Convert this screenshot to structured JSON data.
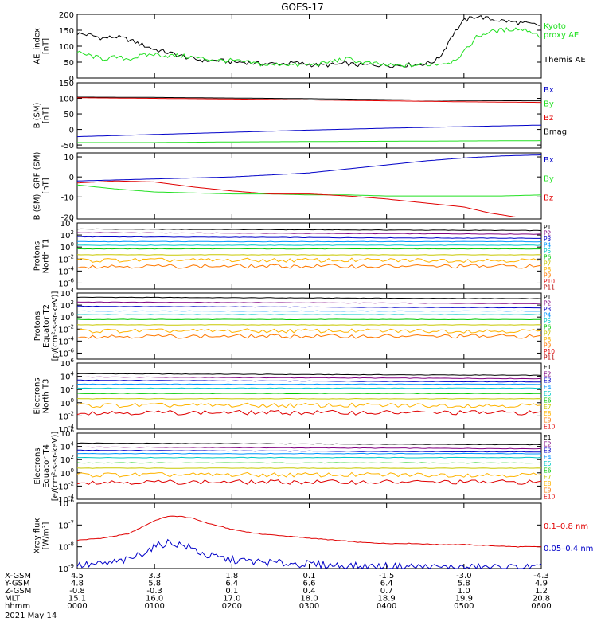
{
  "title": "GOES-17",
  "colors": {
    "black": "#000000",
    "red": "#e00000",
    "green": "#22e022",
    "blue": "#0000c8"
  },
  "chart_data": [
    {
      "type": "line",
      "ylabel": [
        "AE_index",
        "[nT]"
      ],
      "ylim": [
        0,
        200
      ],
      "ticks": [
        "0",
        "50",
        "100",
        "150",
        "200"
      ],
      "legend": [
        {
          "text": "Kyoto",
          "color": "#22e022"
        },
        {
          "text": "proxy AE",
          "color": "#22e022"
        },
        {
          "text": "Themis AE",
          "color": "#000000"
        }
      ],
      "series": [
        {
          "color": "#000000",
          "x": [
            0,
            10,
            20,
            30,
            40,
            50,
            60,
            70,
            80,
            90,
            100,
            110,
            120,
            130,
            140,
            150,
            160,
            170,
            180,
            190,
            200,
            210,
            220,
            230,
            240,
            250,
            260,
            270,
            275,
            280,
            285,
            290,
            300,
            310,
            320,
            330,
            340,
            350,
            360
          ],
          "values": [
            140,
            135,
            125,
            130,
            120,
            105,
            90,
            80,
            70,
            60,
            55,
            55,
            50,
            50,
            45,
            45,
            45,
            48,
            42,
            40,
            42,
            45,
            40,
            42,
            40,
            40,
            42,
            45,
            50,
            60,
            90,
            130,
            180,
            195,
            185,
            180,
            175,
            170,
            165
          ]
        },
        {
          "color": "#22e022",
          "x": [
            0,
            10,
            20,
            30,
            40,
            50,
            60,
            70,
            80,
            90,
            100,
            110,
            120,
            130,
            140,
            150,
            160,
            170,
            180,
            190,
            200,
            210,
            220,
            230,
            240,
            250,
            260,
            270,
            280,
            290,
            300,
            310,
            320,
            330,
            340,
            350,
            360
          ],
          "values": [
            80,
            70,
            60,
            65,
            60,
            70,
            75,
            70,
            70,
            65,
            60,
            55,
            55,
            50,
            45,
            40,
            45,
            40,
            42,
            45,
            55,
            60,
            50,
            45,
            40,
            38,
            40,
            42,
            45,
            50,
            80,
            130,
            145,
            150,
            155,
            150,
            130
          ]
        }
      ]
    },
    {
      "type": "line",
      "ylabel": [
        "B (SM)",
        "[nT]"
      ],
      "ylim": [
        -60,
        150
      ],
      "ticks": [
        "-50",
        "0",
        "50",
        "100",
        "150"
      ],
      "legend": [
        {
          "text": "Bx",
          "color": "#0000c8"
        },
        {
          "text": "By",
          "color": "#22e022"
        },
        {
          "text": "Bz",
          "color": "#e00000"
        },
        {
          "text": "Bmag",
          "color": "#000000"
        }
      ],
      "series": [
        {
          "color": "#000000",
          "x": [
            0,
            60,
            120,
            180,
            240,
            300,
            360
          ],
          "values": [
            104,
            103,
            101,
            99,
            96,
            93,
            92
          ]
        },
        {
          "color": "#e00000",
          "x": [
            0,
            60,
            120,
            180,
            240,
            300,
            360
          ],
          "values": [
            102,
            100,
            98,
            95,
            92,
            89,
            87
          ]
        },
        {
          "color": "#0000c8",
          "x": [
            0,
            60,
            120,
            180,
            240,
            300,
            360
          ],
          "values": [
            -23,
            -16,
            -9,
            -2,
            4,
            9,
            14
          ]
        },
        {
          "color": "#22e022",
          "x": [
            0,
            60,
            120,
            180,
            240,
            300,
            360
          ],
          "values": [
            -42,
            -42,
            -40,
            -39,
            -38,
            -37,
            -36
          ]
        }
      ]
    },
    {
      "type": "line",
      "ylabel": [
        "B (SM)-IGRF (SM)",
        "[nT]"
      ],
      "ylim": [
        -21,
        12
      ],
      "ticks": [
        "-20",
        "-10",
        "0",
        "10"
      ],
      "legend": [
        {
          "text": "Bx",
          "color": "#0000c8"
        },
        {
          "text": "By",
          "color": "#22e022"
        },
        {
          "text": "Bz",
          "color": "#e00000"
        }
      ],
      "series": [
        {
          "color": "#0000c8",
          "x": [
            0,
            30,
            60,
            90,
            120,
            150,
            180,
            210,
            240,
            270,
            300,
            330,
            360
          ],
          "values": [
            -2,
            -1.5,
            -1,
            -0.5,
            0,
            1,
            2,
            4,
            6,
            8,
            9.5,
            10.5,
            11
          ]
        },
        {
          "color": "#22e022",
          "x": [
            0,
            30,
            60,
            90,
            120,
            150,
            180,
            210,
            240,
            270,
            300,
            330,
            360
          ],
          "values": [
            -4,
            -6,
            -7.5,
            -8,
            -8.5,
            -8.5,
            -9,
            -9,
            -9.5,
            -9.5,
            -9.5,
            -9.5,
            -9
          ]
        },
        {
          "color": "#e00000",
          "x": [
            0,
            30,
            60,
            90,
            120,
            150,
            180,
            210,
            240,
            270,
            300,
            320,
            340,
            360
          ],
          "values": [
            -3,
            -2,
            -2.5,
            -5,
            -7,
            -8.5,
            -8.5,
            -9.5,
            -11,
            -13,
            -15,
            -18,
            -20,
            -20
          ]
        }
      ]
    },
    {
      "type": "line",
      "scale": "log",
      "ylabel": [
        "Protons",
        "North T1"
      ],
      "ylim": [
        -7,
        4
      ],
      "ticks": [
        "10^-6",
        "10^-4",
        "10^-2",
        "10^0",
        "10^2",
        "10^4"
      ],
      "legend": [
        "P1",
        "P2",
        "P3",
        "P4",
        "P5",
        "P6",
        "P7",
        "P8",
        "P9",
        "P10",
        "P11"
      ],
      "levels": [
        3.0,
        2.4,
        1.7,
        0.9,
        0.3,
        -0.3,
        -1.3,
        -2.2,
        -3.2
      ],
      "level_colors": [
        "#000000",
        "#800080",
        "#0000c8",
        "#0096ff",
        "#00c8c8",
        "#00c800",
        "#c8c800",
        "#ffb400",
        "#ff7800"
      ]
    },
    {
      "type": "line",
      "scale": "log",
      "ylabel": [
        "Protons",
        "Equator T2",
        "[p/(cm²-s-sr-keV)]"
      ],
      "ylim": [
        -7,
        4
      ],
      "ticks": [
        "10^-6",
        "10^-4",
        "10^-2",
        "10^0",
        "10^2",
        "10^4"
      ],
      "legend": [
        "P1",
        "P2",
        "P3",
        "P4",
        "P5",
        "P6",
        "P7",
        "P8",
        "P9",
        "P10",
        "P11"
      ],
      "levels": [
        3.3,
        2.5,
        1.8,
        1.0,
        0.4,
        -0.4,
        -1.3,
        -2.3,
        -3.2
      ],
      "level_colors": [
        "#000000",
        "#800080",
        "#0000c8",
        "#0096ff",
        "#00c8c8",
        "#00c800",
        "#c8c800",
        "#ffb400",
        "#ff7800"
      ]
    },
    {
      "type": "line",
      "scale": "log",
      "ylabel": [
        "Electrons",
        "North T3"
      ],
      "ylim": [
        -4,
        6
      ],
      "ticks": [
        "10^-4",
        "10^-2",
        "10^0",
        "10^2",
        "10^4",
        "10^6"
      ],
      "legend": [
        "E1",
        "E2",
        "E3",
        "E4",
        "E5",
        "E6",
        "E7",
        "E8",
        "E9",
        "E10"
      ],
      "levels": [
        4.4,
        3.9,
        3.4,
        2.8,
        2.2,
        1.4,
        0.6,
        -0.4,
        -1.5
      ],
      "level_colors": [
        "#000000",
        "#800080",
        "#0000c8",
        "#0096ff",
        "#00c8c8",
        "#00c800",
        "#c8c800",
        "#ffb400",
        "#e00000"
      ]
    },
    {
      "type": "line",
      "scale": "log",
      "ylabel": [
        "Electrons",
        "Equator T4",
        "[e/(cm²-s-sr-keV)]"
      ],
      "ylim": [
        -4,
        6
      ],
      "ticks": [
        "10^-4",
        "10^-2",
        "10^0",
        "10^2",
        "10^4",
        "10^6"
      ],
      "legend": [
        "E1",
        "E2",
        "E3",
        "E4",
        "E5",
        "E6",
        "E7",
        "E8",
        "E9",
        "E10"
      ],
      "levels": [
        4.5,
        3.9,
        3.4,
        2.9,
        2.3,
        1.5,
        0.7,
        -0.3,
        -1.4
      ],
      "level_colors": [
        "#000000",
        "#800080",
        "#0000c8",
        "#0096ff",
        "#00c8c8",
        "#00c800",
        "#c8c800",
        "#ffb400",
        "#e00000"
      ]
    },
    {
      "type": "line",
      "scale": "log",
      "ylabel": [
        "Xray flux",
        "[W/m²]"
      ],
      "ylim": [
        -9,
        -6
      ],
      "ticks": [
        "10^-9",
        "10^-8",
        "10^-7",
        "10^-6"
      ],
      "legend": [
        {
          "text": "0.1–0.8 nm",
          "color": "#e00000"
        },
        {
          "text": "0.05–0.4 nm",
          "color": "#0000c8"
        }
      ],
      "series": [
        {
          "color": "#e00000",
          "x": [
            0,
            20,
            40,
            50,
            60,
            70,
            80,
            90,
            100,
            120,
            140,
            160,
            180,
            200,
            220,
            240,
            260,
            280,
            300,
            320,
            340,
            360
          ],
          "values": [
            -7.7,
            -7.6,
            -7.4,
            -7.1,
            -6.8,
            -6.6,
            -6.6,
            -6.7,
            -6.9,
            -7.2,
            -7.4,
            -7.5,
            -7.6,
            -7.7,
            -7.8,
            -7.85,
            -7.85,
            -7.9,
            -7.9,
            -7.95,
            -8.0,
            -8.0
          ]
        },
        {
          "color": "#0000c8",
          "x": [
            0,
            20,
            40,
            50,
            60,
            70,
            80,
            90,
            100,
            120,
            140,
            160,
            180,
            200,
            220,
            240,
            260,
            280,
            300,
            320,
            340,
            360
          ],
          "values": [
            -8.85,
            -8.8,
            -8.6,
            -8.3,
            -8.0,
            -7.8,
            -7.9,
            -8.1,
            -8.4,
            -8.6,
            -8.7,
            -8.75,
            -8.8,
            -8.85,
            -8.9,
            -8.9,
            -8.9,
            -8.95,
            -8.95,
            -8.95,
            -8.95,
            -8.95
          ]
        }
      ]
    }
  ],
  "orbit_table": {
    "rows": [
      {
        "label": "X-GSM",
        "values": [
          "4.5",
          "3.3",
          "1.8",
          "0.1",
          "-1.5",
          "-3.0",
          "-4.3"
        ]
      },
      {
        "label": "Y-GSM",
        "values": [
          "4.8",
          "5.8",
          "6.4",
          "6.6",
          "6.4",
          "5.8",
          "4.9"
        ]
      },
      {
        "label": "Z-GSM",
        "values": [
          "-0.8",
          "-0.3",
          "0.1",
          "0.4",
          "0.7",
          "1.0",
          "1.2"
        ]
      },
      {
        "label": "MLT",
        "values": [
          "15.1",
          "16.0",
          "17.0",
          "18.0",
          "18.9",
          "19.9",
          "20.8"
        ]
      },
      {
        "label": "hhmm",
        "values": [
          "0000",
          "0100",
          "0200",
          "0300",
          "0400",
          "0500",
          "0600"
        ]
      }
    ],
    "date": "2021 May 14"
  }
}
